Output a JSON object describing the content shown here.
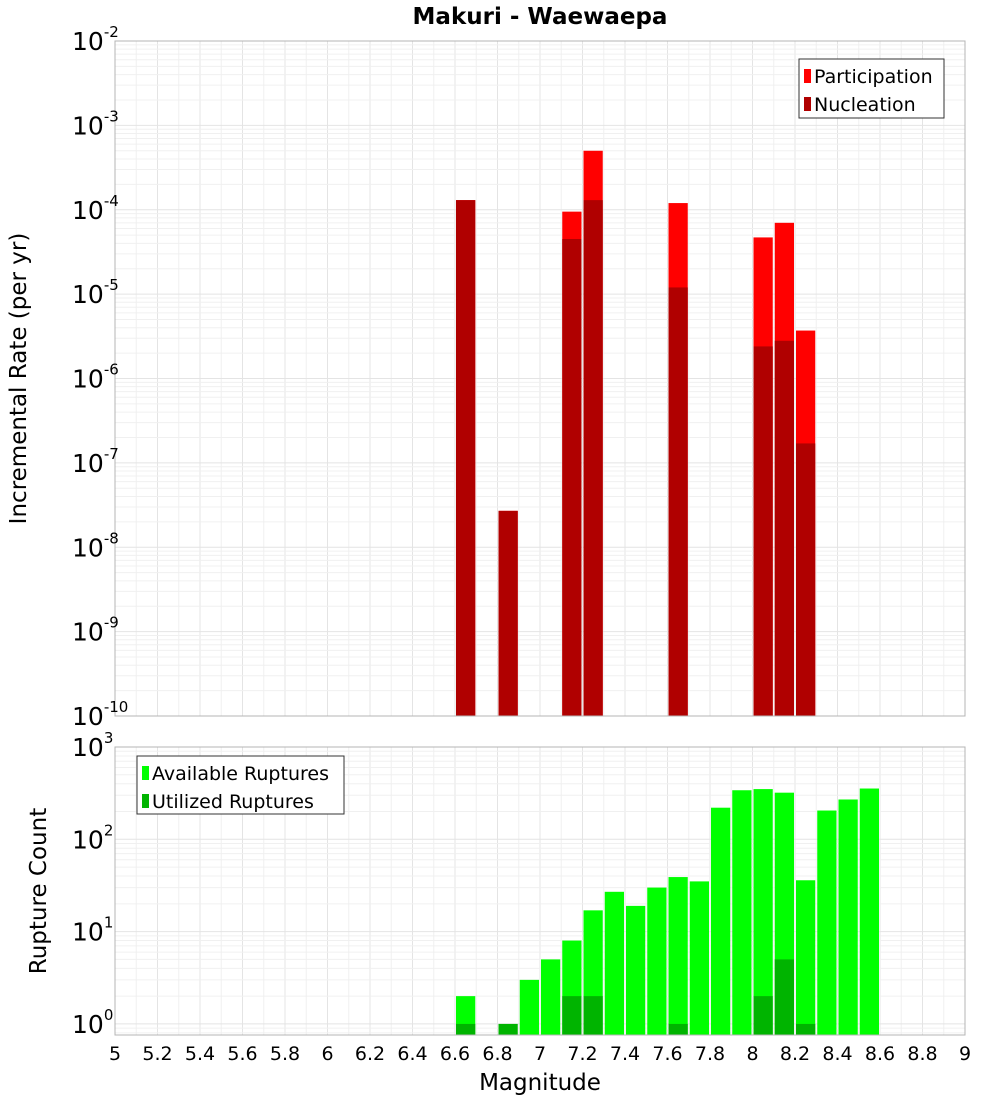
{
  "chart_data": [
    {
      "type": "bar",
      "title": "Makuri - Waewaepa",
      "ylabel": "Incremental Rate (per yr)",
      "xlabel": "",
      "yscale": "log",
      "ylim_exponents": [
        -10,
        -2
      ],
      "xlim": [
        5,
        9
      ],
      "bin_width": 0.1,
      "legend_placement": "top-right",
      "series": [
        {
          "name": "Participation",
          "color": "#ff0000",
          "x": [
            6.65,
            6.85,
            7.15,
            7.25,
            7.65,
            8.05,
            8.15,
            8.25
          ],
          "values": [
            0.00013,
            2.7e-08,
            9.5e-05,
            0.0005,
            0.00012,
            4.7e-05,
            7e-05,
            3.7e-06
          ]
        },
        {
          "name": "Nucleation",
          "color": "#b00000",
          "x": [
            6.65,
            6.85,
            7.15,
            7.25,
            7.65,
            8.05,
            8.15,
            8.25
          ],
          "values": [
            0.00013,
            2.7e-08,
            4.5e-05,
            0.00013,
            1.2e-05,
            2.4e-06,
            2.8e-06,
            1.7e-07
          ]
        }
      ]
    },
    {
      "type": "bar",
      "title": "",
      "ylabel": "Rupture Count",
      "xlabel": "Magnitude",
      "yscale": "log",
      "ylim_exponents": [
        -0.12,
        3
      ],
      "xlim": [
        5,
        9
      ],
      "bin_width": 0.1,
      "legend_placement": "top-left",
      "series": [
        {
          "name": "Available Ruptures",
          "color": "#00ff00",
          "x": [
            6.65,
            6.95,
            7.05,
            7.15,
            7.25,
            7.35,
            7.45,
            7.55,
            7.65,
            7.75,
            7.85,
            7.95,
            8.05,
            8.15,
            8.25,
            8.35,
            8.45,
            8.55
          ],
          "values": [
            2,
            3,
            5,
            8,
            17,
            27,
            19,
            30,
            39,
            35,
            220,
            340,
            350,
            320,
            36,
            205,
            270,
            355
          ]
        },
        {
          "name": "Utilized Ruptures",
          "color": "#00b400",
          "x": [
            6.65,
            6.85,
            7.15,
            7.25,
            7.65,
            8.05,
            8.15,
            8.25
          ],
          "values": [
            1,
            1,
            2,
            2,
            1,
            2,
            5,
            1
          ]
        }
      ]
    }
  ],
  "x_ticks": [
    "5",
    "5.2",
    "5.4",
    "5.6",
    "5.8",
    "6",
    "6.2",
    "6.4",
    "6.6",
    "6.8",
    "7",
    "7.2",
    "7.4",
    "7.6",
    "7.8",
    "8",
    "8.2",
    "8.4",
    "8.6",
    "8.8",
    "9"
  ],
  "y_ticks_top": {
    "base": "10",
    "exponents": [
      "-2",
      "-3",
      "-4",
      "-5",
      "-6",
      "-7",
      "-8",
      "-9",
      "-10"
    ]
  },
  "y_ticks_bottom": {
    "base": "10",
    "exponents": [
      "3",
      "2",
      "1",
      "0"
    ]
  }
}
